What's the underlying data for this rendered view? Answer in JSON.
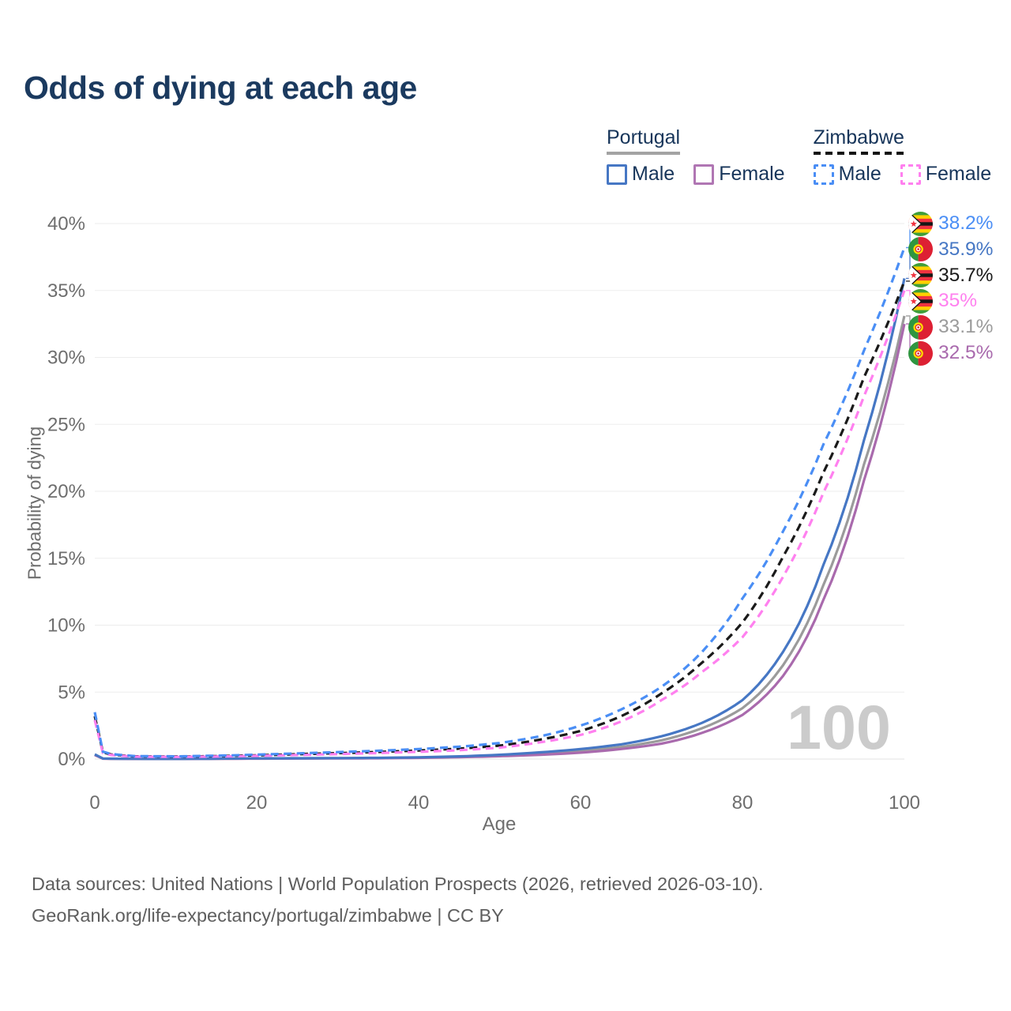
{
  "title": "Odds of dying at each age",
  "legend": {
    "groups": [
      {
        "name": "Portugal",
        "underline_style": "solid",
        "underline_color": "#a3a3a3",
        "items": [
          {
            "label": "Male",
            "color": "#4677c4",
            "dashed": false
          },
          {
            "label": "Female",
            "color": "#b076b3",
            "dashed": false
          }
        ]
      },
      {
        "name": "Zimbabwe",
        "underline_style": "dashed",
        "underline_color": "#151515",
        "items": [
          {
            "label": "Male",
            "color": "#4a8ef5",
            "dashed": true
          },
          {
            "label": "Female",
            "color": "#ff80ef",
            "dashed": true
          }
        ]
      }
    ]
  },
  "chart_data": {
    "type": "line",
    "title": "Odds of dying at each age",
    "xlabel": "Age",
    "ylabel": "Probability of dying",
    "xlim": [
      0,
      100
    ],
    "ylim": [
      0,
      40
    ],
    "x_ticks": [
      0,
      20,
      40,
      60,
      80,
      100
    ],
    "y_ticks": [
      "0%",
      "5%",
      "10%",
      "15%",
      "20%",
      "25%",
      "30%",
      "35%",
      "40%"
    ],
    "grid": "horizontal-only",
    "legend_position": "top-right",
    "watermark": "100",
    "x": [
      0,
      1,
      2,
      5,
      10,
      15,
      20,
      25,
      30,
      35,
      40,
      45,
      50,
      55,
      60,
      65,
      70,
      75,
      80,
      85,
      90,
      95,
      100
    ],
    "series": [
      {
        "name": "Portugal (both sexes)",
        "slug": "portugal-average",
        "country": "Portugal",
        "sex": "both",
        "color": "#9b9b9b",
        "dashed": false,
        "flag": "pt",
        "end_label": "33.1%",
        "values": [
          0.32,
          0.035,
          0.025,
          0.013,
          0.011,
          0.025,
          0.04,
          0.05,
          0.06,
          0.08,
          0.11,
          0.17,
          0.26,
          0.4,
          0.6,
          0.9,
          1.4,
          2.3,
          3.8,
          7.0,
          13.0,
          22.0,
          33.1
        ]
      },
      {
        "name": "Portugal Female",
        "slug": "portugal-female",
        "country": "Portugal",
        "sex": "female",
        "color": "#a96aad",
        "dashed": false,
        "flag": "pt",
        "end_label": "32.5%",
        "values": [
          0.3,
          0.03,
          0.02,
          0.012,
          0.01,
          0.02,
          0.03,
          0.04,
          0.05,
          0.06,
          0.09,
          0.14,
          0.21,
          0.32,
          0.48,
          0.75,
          1.15,
          1.95,
          3.3,
          6.2,
          11.9,
          20.8,
          32.5
        ]
      },
      {
        "name": "Portugal Male",
        "slug": "portugal-male",
        "country": "Portugal",
        "sex": "male",
        "color": "#4677c4",
        "dashed": false,
        "flag": "pt",
        "end_label": "35.9%",
        "values": [
          0.35,
          0.04,
          0.03,
          0.015,
          0.012,
          0.03,
          0.05,
          0.06,
          0.07,
          0.09,
          0.13,
          0.2,
          0.32,
          0.5,
          0.75,
          1.1,
          1.7,
          2.7,
          4.4,
          8.0,
          14.5,
          23.8,
          35.9
        ]
      },
      {
        "name": "Zimbabwe (both sexes)",
        "slug": "zimbabwe-average",
        "country": "Zimbabwe",
        "sex": "both",
        "color": "#1a1a1a",
        "dashed": true,
        "flag": "zw",
        "end_label": "35.7%",
        "values": [
          3.2,
          0.5,
          0.34,
          0.2,
          0.18,
          0.22,
          0.28,
          0.36,
          0.44,
          0.53,
          0.64,
          0.78,
          1.0,
          1.45,
          2.1,
          3.2,
          4.9,
          7.2,
          10.2,
          15.1,
          21.4,
          28.5,
          35.7
        ]
      },
      {
        "name": "Zimbabwe Female",
        "slug": "zimbabwe-female",
        "country": "Zimbabwe",
        "sex": "female",
        "color": "#ff80ef",
        "dashed": true,
        "flag": "zw",
        "end_label": "35%",
        "values": [
          2.9,
          0.45,
          0.3,
          0.18,
          0.16,
          0.19,
          0.24,
          0.3,
          0.37,
          0.45,
          0.54,
          0.66,
          0.85,
          1.25,
          1.8,
          2.8,
          4.4,
          6.5,
          9.1,
          13.6,
          19.9,
          27.1,
          35.0
        ]
      },
      {
        "name": "Zimbabwe Male",
        "slug": "zimbabwe-male",
        "country": "Zimbabwe",
        "sex": "male",
        "color": "#4a8ef5",
        "dashed": true,
        "flag": "zw",
        "end_label": "38.2%",
        "values": [
          3.5,
          0.55,
          0.38,
          0.22,
          0.2,
          0.25,
          0.33,
          0.42,
          0.52,
          0.62,
          0.75,
          0.92,
          1.2,
          1.7,
          2.5,
          3.7,
          5.4,
          8.0,
          12.0,
          17.0,
          23.5,
          30.5,
          38.2
        ]
      }
    ]
  },
  "footer": {
    "line1": "Data sources: United Nations | World Population Prospects (2026, retrieved 2026-03-10).",
    "line2": "GeoRank.org/life-expectancy/portugal/zimbabwe | CC BY"
  }
}
